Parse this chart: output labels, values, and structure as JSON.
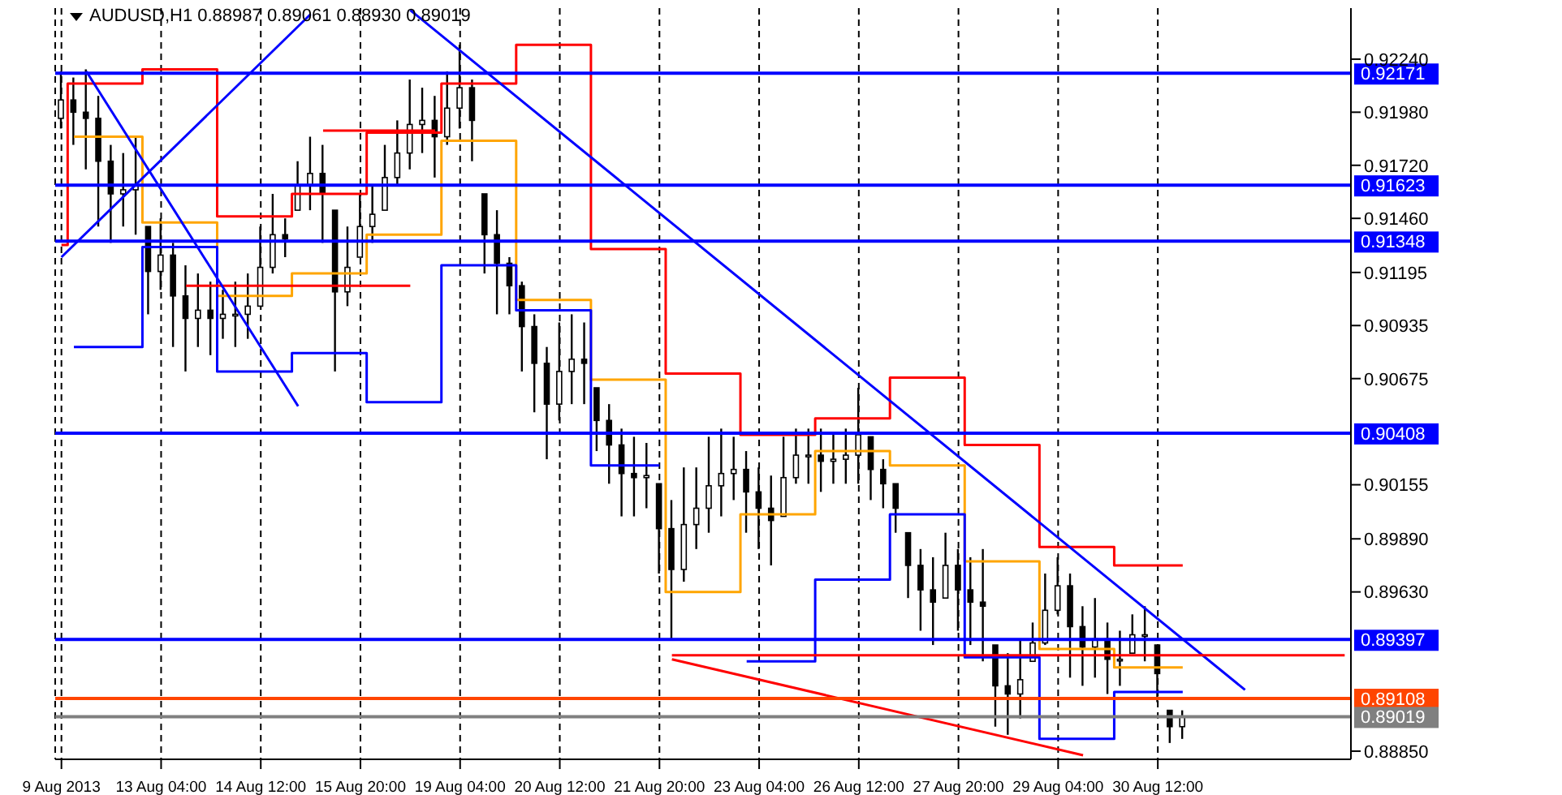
{
  "chart_data": {
    "type": "candlestick",
    "title": "AUDUSD,H1  0.88987 0.89061 0.88930 0.89019",
    "color": "#000000",
    "categories": [
      "9 Aug 2013",
      null,
      null,
      null,
      null,
      null,
      null,
      null,
      "13 Aug 04:00",
      null,
      null,
      null,
      null,
      null,
      null,
      null,
      "14 Aug 12:00",
      null,
      null,
      null,
      null,
      null,
      null,
      null,
      "15 Aug 20:00",
      null,
      null,
      null,
      null,
      null,
      null,
      null,
      "19 Aug 04:00",
      null,
      null,
      null,
      null,
      null,
      null,
      null,
      "20 Aug 12:00",
      null,
      null,
      null,
      null,
      null,
      null,
      null,
      "21 Aug 20:00",
      null,
      null,
      null,
      null,
      null,
      null,
      null,
      "23 Aug 04:00",
      null,
      null,
      null,
      null,
      null,
      null,
      null,
      "26 Aug 12:00",
      null,
      null,
      null,
      null,
      null,
      null,
      null,
      "27 Aug 20:00",
      null,
      null,
      null,
      null,
      null,
      null,
      null,
      "29 Aug 04:00",
      null,
      null,
      null,
      null,
      null,
      null,
      null,
      "30 Aug 12:00",
      null,
      null,
      null,
      null,
      null,
      null,
      null,
      null,
      null,
      null,
      null,
      null,
      null,
      null,
      null
    ],
    "ohlc": [
      [
        0.9195,
        0.9218,
        0.919,
        0.9204
      ],
      [
        0.9204,
        0.9215,
        0.9182,
        0.9198
      ],
      [
        0.9198,
        0.9219,
        0.917,
        0.9195
      ],
      [
        0.9195,
        0.9206,
        0.9142,
        0.9174
      ],
      [
        0.9174,
        0.9182,
        0.9134,
        0.9158
      ],
      [
        0.9158,
        0.9178,
        0.9142,
        0.916
      ],
      [
        0.916,
        0.9186,
        0.9138,
        0.9162
      ],
      [
        0.9142,
        0.9142,
        0.9099,
        0.912
      ],
      [
        0.912,
        0.9146,
        0.9111,
        0.9128
      ],
      [
        0.9128,
        0.9134,
        0.9083,
        0.9108
      ],
      [
        0.9108,
        0.9123,
        0.9071,
        0.9097
      ],
      [
        0.9097,
        0.9119,
        0.9083,
        0.9101
      ],
      [
        0.9101,
        0.9115,
        0.9079,
        0.9097
      ],
      [
        0.9097,
        0.9111,
        0.9087,
        0.9099
      ],
      [
        0.9099,
        0.9115,
        0.9083,
        0.9099
      ],
      [
        0.9099,
        0.9119,
        0.9087,
        0.9103
      ],
      [
        0.9103,
        0.9142,
        0.9103,
        0.9122
      ],
      [
        0.9122,
        0.9158,
        0.9119,
        0.9138
      ],
      [
        0.9138,
        0.9146,
        0.9127,
        0.9136
      ],
      [
        0.915,
        0.9174,
        0.915,
        0.9162
      ],
      [
        0.9162,
        0.9186,
        0.915,
        0.9168
      ],
      [
        0.9168,
        0.9182,
        0.9134,
        0.9158
      ],
      [
        0.915,
        0.915,
        0.9071,
        0.911
      ],
      [
        0.911,
        0.9142,
        0.9103,
        0.9122
      ],
      [
        0.9127,
        0.9158,
        0.9127,
        0.9142
      ],
      [
        0.9142,
        0.9162,
        0.9134,
        0.9148
      ],
      [
        0.915,
        0.9182,
        0.915,
        0.9166
      ],
      [
        0.9166,
        0.9194,
        0.9162,
        0.9178
      ],
      [
        0.9178,
        0.9214,
        0.917,
        0.9192
      ],
      [
        0.9192,
        0.921,
        0.9178,
        0.9194
      ],
      [
        0.9194,
        0.9206,
        0.9166,
        0.9186
      ],
      [
        0.9186,
        0.9218,
        0.9182,
        0.92
      ],
      [
        0.92,
        0.9231,
        0.919,
        0.921
      ],
      [
        0.921,
        0.9214,
        0.9174,
        0.9194
      ],
      [
        0.9158,
        0.9158,
        0.9119,
        0.9138
      ],
      [
        0.9138,
        0.915,
        0.9099,
        0.9124
      ],
      [
        0.9124,
        0.9127,
        0.9099,
        0.9113
      ],
      [
        0.9113,
        0.9115,
        0.9071,
        0.9093
      ],
      [
        0.9093,
        0.9099,
        0.9051,
        0.9075
      ],
      [
        0.9075,
        0.9083,
        0.9028,
        0.9055
      ],
      [
        0.9055,
        0.9095,
        0.9047,
        0.9071
      ],
      [
        0.9071,
        0.9099,
        0.9055,
        0.9077
      ],
      [
        0.9077,
        0.9095,
        0.9055,
        0.9075
      ],
      [
        0.9063,
        0.9063,
        0.9032,
        0.9047
      ],
      [
        0.9047,
        0.9055,
        0.9016,
        0.9035
      ],
      [
        0.9035,
        0.9043,
        0.9,
        0.9021
      ],
      [
        0.9021,
        0.9039,
        0.9,
        0.9019
      ],
      [
        0.9019,
        0.9036,
        0.9004,
        0.902
      ],
      [
        0.9016,
        0.9016,
        0.8972,
        0.8994
      ],
      [
        0.8994,
        0.9008,
        0.894,
        0.8974
      ],
      [
        0.8974,
        0.9024,
        0.8968,
        0.8996
      ],
      [
        0.8996,
        0.9024,
        0.8984,
        0.9004
      ],
      [
        0.9004,
        0.9039,
        0.8992,
        0.9015
      ],
      [
        0.9015,
        0.9043,
        0.9,
        0.9021
      ],
      [
        0.9021,
        0.9039,
        0.9008,
        0.9023
      ],
      [
        0.9023,
        0.9032,
        0.8992,
        0.9012
      ],
      [
        0.9012,
        0.9024,
        0.8984,
        0.9004
      ],
      [
        0.9004,
        0.902,
        0.8976,
        0.8998
      ],
      [
        0.9,
        0.9039,
        0.9,
        0.9019
      ],
      [
        0.9019,
        0.9043,
        0.9016,
        0.903
      ],
      [
        0.903,
        0.9043,
        0.9016,
        0.903
      ],
      [
        0.903,
        0.9043,
        0.9012,
        0.9027
      ],
      [
        0.9027,
        0.9041,
        0.9016,
        0.9028
      ],
      [
        0.9028,
        0.9043,
        0.9016,
        0.903
      ],
      [
        0.903,
        0.9063,
        0.9016,
        0.904
      ],
      [
        0.9039,
        0.9039,
        0.9008,
        0.9023
      ],
      [
        0.9023,
        0.9028,
        0.9004,
        0.9016
      ],
      [
        0.9016,
        0.9016,
        0.8992,
        0.9004
      ],
      [
        0.8992,
        0.8992,
        0.896,
        0.8976
      ],
      [
        0.8976,
        0.8984,
        0.8944,
        0.8964
      ],
      [
        0.8964,
        0.898,
        0.8937,
        0.8958
      ],
      [
        0.896,
        0.8992,
        0.896,
        0.8976
      ],
      [
        0.8976,
        0.8984,
        0.8944,
        0.8964
      ],
      [
        0.8964,
        0.898,
        0.8937,
        0.8958
      ],
      [
        0.8958,
        0.8984,
        0.8929,
        0.8956
      ],
      [
        0.8937,
        0.8937,
        0.8897,
        0.8917
      ],
      [
        0.8917,
        0.8933,
        0.8893,
        0.8913
      ],
      [
        0.8913,
        0.894,
        0.8901,
        0.892
      ],
      [
        0.8929,
        0.8948,
        0.8929,
        0.8938
      ],
      [
        0.8938,
        0.8972,
        0.8937,
        0.8954
      ],
      [
        0.8954,
        0.898,
        0.8952,
        0.8966
      ],
      [
        0.8966,
        0.8972,
        0.8921,
        0.8946
      ],
      [
        0.8946,
        0.8956,
        0.8917,
        0.8936
      ],
      [
        0.8936,
        0.896,
        0.8921,
        0.894
      ],
      [
        0.894,
        0.8948,
        0.8913,
        0.893
      ],
      [
        0.893,
        0.8944,
        0.8917,
        0.893
      ],
      [
        0.8933,
        0.8952,
        0.8933,
        0.8942
      ],
      [
        0.8942,
        0.8956,
        0.8929,
        0.8942
      ],
      [
        0.8937,
        0.8937,
        0.8909,
        0.8923
      ],
      [
        0.8905,
        0.8905,
        0.8889,
        0.8897
      ],
      [
        0.8897,
        0.8905,
        0.8891,
        0.8902
      ],
      null,
      null,
      null,
      null,
      null,
      null,
      null,
      null,
      null,
      null,
      null,
      null,
      null
    ],
    "series": [
      {
        "type": "step",
        "color": "#ff0000",
        "values": [
          0.9133,
          0.9212,
          0.9212,
          0.9212,
          0.9212,
          0.9212,
          0.9212,
          0.9219,
          0.9219,
          0.9219,
          0.9219,
          0.9219,
          0.9219,
          0.9147,
          0.9147,
          0.9147,
          0.9147,
          0.9147,
          0.9147,
          0.9158,
          0.9158,
          0.9158,
          0.9158,
          0.9158,
          0.9158,
          0.9188,
          0.9188,
          0.9188,
          0.9188,
          0.9188,
          0.9188,
          0.9212,
          0.9212,
          0.9212,
          0.9212,
          0.9212,
          0.9212,
          0.9231,
          0.9231,
          0.9231,
          0.9231,
          0.9231,
          0.9231,
          0.9131,
          0.9131,
          0.9131,
          0.9131,
          0.9131,
          0.9131,
          0.907,
          0.907,
          0.907,
          0.907,
          0.907,
          0.907,
          0.904,
          0.904,
          0.904,
          0.904,
          0.904,
          0.904,
          0.9048,
          0.9048,
          0.9048,
          0.9048,
          0.9048,
          0.9048,
          0.9068,
          0.9068,
          0.9068,
          0.9068,
          0.9068,
          0.9068,
          0.9035,
          0.9035,
          0.9035,
          0.9035,
          0.9035,
          0.9035,
          0.8985,
          0.8985,
          0.8985,
          0.8985,
          0.8985,
          0.8985,
          0.8976,
          0.8976,
          0.8976,
          0.8976,
          0.8976,
          0.8976,
          null,
          null,
          null,
          null,
          null,
          null,
          null,
          null,
          null,
          null,
          null,
          null,
          null
        ]
      },
      {
        "type": "step",
        "color": "#ffa500",
        "values": [
          null,
          0.9186,
          0.9186,
          0.9186,
          0.9186,
          0.9186,
          0.9186,
          0.9144,
          0.9144,
          0.9144,
          0.9144,
          0.9144,
          0.9144,
          0.9108,
          0.9108,
          0.9108,
          0.9108,
          0.9108,
          0.9108,
          0.9119,
          0.9119,
          0.9119,
          0.9119,
          0.9119,
          0.9119,
          0.9138,
          0.9138,
          0.9138,
          0.9138,
          0.9138,
          0.9138,
          0.9184,
          0.9184,
          0.9184,
          0.9184,
          0.9184,
          0.9184,
          0.9106,
          0.9106,
          0.9106,
          0.9106,
          0.9106,
          0.9106,
          0.9067,
          0.9067,
          0.9067,
          0.9067,
          0.9067,
          0.9067,
          0.8963,
          0.8963,
          0.8963,
          0.8963,
          0.8963,
          0.8963,
          0.9001,
          0.9001,
          0.9001,
          0.9001,
          0.9001,
          0.9001,
          0.9032,
          0.9032,
          0.9032,
          0.9032,
          0.9032,
          0.9032,
          0.9025,
          0.9025,
          0.9025,
          0.9025,
          0.9025,
          0.9025,
          0.8978,
          0.8978,
          0.8978,
          0.8978,
          0.8978,
          0.8978,
          0.8935,
          0.8935,
          0.8935,
          0.8935,
          0.8935,
          0.8935,
          0.8926,
          0.8926,
          0.8926,
          0.8926,
          0.8926,
          0.8926,
          null,
          null,
          null,
          null,
          null,
          null,
          null,
          null,
          null,
          null,
          null,
          null,
          null
        ]
      },
      {
        "type": "step",
        "color": "#0000ff",
        "values": [
          null,
          0.9083,
          0.9083,
          0.9083,
          0.9083,
          0.9083,
          0.9083,
          0.9132,
          0.9132,
          0.9132,
          0.9132,
          0.9132,
          0.9132,
          0.9071,
          0.9071,
          0.9071,
          0.9071,
          0.9071,
          0.9071,
          0.908,
          0.908,
          0.908,
          0.908,
          0.908,
          0.908,
          0.9056,
          0.9056,
          0.9056,
          0.9056,
          0.9056,
          0.9056,
          0.9123,
          0.9123,
          0.9123,
          0.9123,
          0.9123,
          0.9123,
          0.9101,
          0.9101,
          0.9101,
          0.9101,
          0.9101,
          0.9101,
          0.9025,
          0.9025,
          0.9025,
          0.9025,
          0.9025,
          0.9025,
          null,
          null,
          null,
          null,
          null,
          null,
          0.8929,
          0.8929,
          0.8929,
          0.8929,
          0.8929,
          0.8929,
          0.8969,
          0.8969,
          0.8969,
          0.8969,
          0.8969,
          0.8969,
          0.9001,
          0.9001,
          0.9001,
          0.9001,
          0.9001,
          0.9001,
          0.8931,
          0.8931,
          0.8931,
          0.8931,
          0.8931,
          0.8931,
          0.8891,
          0.8891,
          0.8891,
          0.8891,
          0.8891,
          0.8891,
          0.8914,
          0.8914,
          0.8914,
          0.8914,
          0.8914,
          0.8914,
          null,
          null,
          null,
          null,
          null,
          null,
          null,
          null,
          null,
          null,
          null,
          null,
          null
        ]
      },
      {
        "type": "line",
        "color": "#0000ff",
        "values": [
          null,
          null,
          null,
          null,
          null,
          null,
          null,
          null,
          null,
          null,
          null,
          null,
          null,
          null,
          null,
          null,
          null,
          null,
          null,
          null,
          null,
          null,
          null,
          null,
          null,
          null,
          null,
          null,
          0.9248,
          null,
          null,
          null,
          null,
          null,
          null,
          null,
          null,
          null,
          null,
          null,
          null,
          null,
          null,
          null,
          null,
          null,
          null,
          null,
          null,
          null,
          null,
          null,
          null,
          null,
          null,
          null,
          null,
          null,
          null,
          null,
          null,
          null,
          null,
          null,
          null,
          null,
          null,
          null,
          null,
          null,
          null,
          null,
          null,
          null,
          null,
          null,
          null,
          null,
          null,
          null,
          null,
          null,
          null,
          null,
          null,
          null,
          null,
          null,
          null,
          null,
          null,
          null,
          null,
          null,
          null,
          0.8915,
          null,
          null,
          null,
          null,
          null,
          null,
          null,
          null
        ]
      },
      {
        "type": "line",
        "color": "#ff0000",
        "values": [
          null,
          null,
          null,
          null,
          null,
          null,
          null,
          null,
          null,
          null,
          null,
          null,
          null,
          null,
          null,
          null,
          null,
          null,
          null,
          null,
          null,
          null,
          null,
          null,
          null,
          null,
          null,
          null,
          null,
          null,
          null,
          null,
          null,
          null,
          null,
          null,
          null,
          null,
          null,
          null,
          null,
          null,
          null,
          null,
          null,
          null,
          null,
          null,
          null,
          0.893,
          null,
          null,
          null,
          null,
          null,
          null,
          null,
          null,
          null,
          null,
          null,
          null,
          null,
          null,
          null,
          null,
          null,
          null,
          null,
          null,
          null,
          null,
          null,
          null,
          null,
          null,
          null,
          null,
          null,
          null,
          null,
          null,
          0.8883,
          null,
          null,
          null,
          null,
          null,
          null,
          null,
          null,
          null,
          null,
          null,
          null,
          null,
          null,
          null,
          null,
          null,
          null,
          null,
          null,
          null
        ]
      },
      {
        "type": "line",
        "color": "#ff0000",
        "values": [
          null,
          null,
          null,
          null,
          null,
          null,
          null,
          null,
          null,
          null,
          null,
          null,
          null,
          null,
          null,
          null,
          null,
          null,
          null,
          null,
          null,
          null,
          null,
          null,
          null,
          null,
          null,
          null,
          null,
          null,
          null,
          null,
          null,
          null,
          null,
          null,
          null,
          null,
          null,
          null,
          null,
          null,
          null,
          null,
          null,
          null,
          null,
          null,
          null,
          0.8932,
          null,
          null,
          null,
          null,
          null,
          null,
          null,
          null,
          null,
          null,
          null,
          null,
          null,
          null,
          null,
          null,
          null,
          null,
          null,
          null,
          null,
          null,
          null,
          null,
          null,
          null,
          null,
          null,
          null,
          null,
          null,
          null,
          null,
          null,
          null,
          null,
          null,
          null,
          null,
          null,
          null,
          null,
          null,
          null,
          null,
          null,
          null,
          null,
          null,
          null,
          null,
          null,
          null,
          0.8932
        ]
      },
      {
        "type": "line",
        "color": "#ff0000",
        "values": [
          null,
          null,
          null,
          null,
          null,
          null,
          null,
          null,
          null,
          null,
          null,
          null,
          null,
          null,
          null,
          null,
          null,
          null,
          null,
          null,
          null,
          0.9189,
          null,
          null,
          null,
          null,
          null,
          null,
          null,
          null,
          0.9189,
          null,
          null,
          null,
          null,
          null,
          null,
          null,
          null,
          null,
          null,
          null,
          null,
          null,
          null,
          null,
          null,
          null,
          null,
          null,
          null,
          null,
          null,
          null,
          null,
          null,
          null,
          null,
          null,
          null,
          null,
          null,
          null,
          null,
          null,
          null,
          null,
          null,
          null,
          null,
          null,
          null,
          null,
          null,
          null,
          null,
          null,
          null,
          null,
          null,
          null,
          null,
          null,
          null,
          null,
          null,
          null,
          null,
          null,
          null,
          null,
          null,
          null,
          null,
          null,
          null,
          null,
          null,
          null,
          null,
          null,
          null,
          null,
          null
        ]
      },
      {
        "type": "line",
        "color": "#ff0000",
        "values": [
          null,
          null,
          null,
          null,
          null,
          null,
          null,
          null,
          null,
          null,
          0.9113,
          null,
          null,
          null,
          null,
          null,
          null,
          null,
          null,
          null,
          null,
          null,
          null,
          null,
          null,
          null,
          null,
          null,
          0.9113,
          null,
          null,
          null,
          null,
          null,
          null,
          null,
          null,
          null,
          null,
          null,
          null,
          null,
          null,
          null,
          null,
          null,
          null,
          null,
          null,
          null,
          null,
          null,
          null,
          null,
          null,
          null,
          null,
          null,
          null,
          null,
          null,
          null,
          null,
          null,
          null,
          null,
          null,
          null,
          null,
          null,
          null,
          null,
          null,
          null,
          null,
          null,
          null,
          null,
          null,
          null,
          null,
          null,
          null,
          null,
          null,
          null,
          null,
          null,
          null,
          null,
          null,
          null,
          null,
          null,
          null,
          null,
          null,
          null,
          null,
          null,
          null,
          null,
          null,
          null
        ]
      },
      {
        "type": "line",
        "color": "#0000ff",
        "values": [
          0.9127,
          null,
          null,
          null,
          null,
          null,
          null,
          null,
          null,
          null,
          null,
          null,
          null,
          null,
          null,
          null,
          null,
          null,
          null,
          null,
          0.9246,
          null,
          null,
          null,
          null,
          null,
          null,
          null,
          null,
          null,
          null,
          null,
          null,
          null,
          null,
          null,
          null,
          null,
          null,
          null,
          null,
          null,
          null,
          null,
          null,
          null,
          null,
          null,
          null,
          null,
          null,
          null,
          null,
          null,
          null,
          null,
          null,
          null,
          null,
          null,
          null,
          null,
          null,
          null,
          null,
          null,
          null,
          null,
          null,
          null,
          null,
          null,
          null,
          null,
          null,
          null,
          null,
          null,
          null,
          null,
          null,
          null,
          null,
          null,
          null,
          null,
          null,
          null,
          null,
          null,
          null,
          null,
          null,
          null,
          null,
          null,
          null,
          null,
          null,
          null,
          null,
          null,
          null,
          null
        ]
      },
      {
        "type": "line",
        "color": "#0000ff",
        "values": [
          null,
          null,
          0.9218,
          null,
          null,
          null,
          null,
          null,
          null,
          null,
          null,
          null,
          null,
          null,
          null,
          null,
          null,
          null,
          null,
          0.9054,
          null,
          null,
          null,
          null,
          null,
          null,
          null,
          null,
          null,
          null,
          null,
          null,
          null,
          null,
          null,
          null,
          null,
          null,
          null,
          null,
          null,
          null,
          null,
          null,
          null,
          null,
          null,
          null,
          null,
          null,
          null,
          null,
          null,
          null,
          null,
          null,
          null,
          null,
          null,
          null,
          null,
          null,
          null,
          null,
          null,
          null,
          null,
          null,
          null,
          null,
          null,
          null,
          null,
          null,
          null,
          null,
          null,
          null,
          null,
          null,
          null,
          null,
          null,
          null,
          null,
          null,
          null,
          null,
          null,
          null,
          null,
          null,
          null,
          null,
          null,
          null,
          null,
          null,
          null,
          null,
          null,
          null,
          null,
          null
        ]
      }
    ],
    "ylim": [
      0.8881,
      0.9249
    ],
    "yticks": [
      {
        "value": 0.9224,
        "label": "0.92240"
      },
      {
        "value": 0.9198,
        "label": "0.91980"
      },
      {
        "value": 0.9172,
        "label": "0.91720"
      },
      {
        "value": 0.9146,
        "label": "0.91460"
      },
      0.91195,
      0.90935,
      0.90675,
      0.90155,
      {
        "value": 0.8989,
        "label": "0.89890"
      },
      {
        "value": 0.8963,
        "label": "0.89630"
      },
      {
        "value": 0.8885,
        "label": "0.88850"
      }
    ],
    "ref_lines": [
      {
        "axis": "y",
        "value": 0.92171,
        "label": "0.92171",
        "color": "#0000ff"
      },
      {
        "axis": "y",
        "value": 0.91623,
        "label": "0.91623",
        "color": "#0000ff"
      },
      {
        "axis": "y",
        "value": 0.91348,
        "label": "0.91348",
        "color": "#0000ff"
      },
      {
        "axis": "y",
        "value": 0.90408,
        "label": "0.90408",
        "color": "#0000ff"
      },
      {
        "axis": "y",
        "value": 0.89397,
        "label": "0.89397",
        "color": "#0000ff"
      },
      {
        "axis": "y",
        "value": 0.89108,
        "label": "0.89108",
        "color": "#ff4500"
      },
      {
        "axis": "y",
        "value": 0.89019,
        "label": "0.89019",
        "color": "#808080"
      }
    ],
    "grid": "x"
  }
}
